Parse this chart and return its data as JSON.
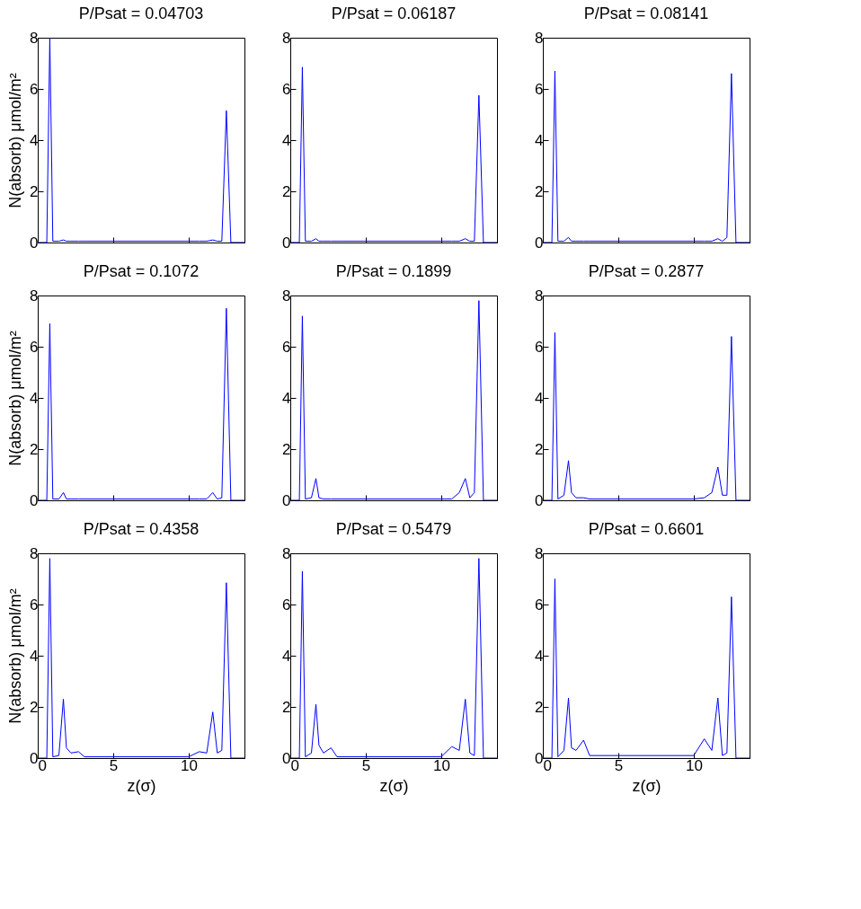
{
  "chart_data": [
    {
      "type": "line",
      "title": "P/Psat = 0.04703",
      "ylabel": "N(absorb) μmol/m²",
      "xlim": [
        0,
        13.7
      ],
      "xticks": [
        0,
        5,
        10
      ],
      "ylim": [
        0,
        8
      ],
      "yticks": [
        0,
        2,
        4,
        6,
        8
      ],
      "tick_labels": "y",
      "x": [
        0,
        0.6,
        0.8,
        1.0,
        1.4,
        1.7,
        1.9,
        2.2,
        2.7,
        3.1,
        10.0,
        10.7,
        11.2,
        11.6,
        11.9,
        12.2,
        12.5,
        12.8,
        13.7
      ],
      "series": [
        {
          "color": "#0000ff",
          "values": [
            0,
            0,
            8,
            0.05,
            0.05,
            0.1,
            0.05,
            0.05,
            0.05,
            0.05,
            0.05,
            0.05,
            0.05,
            0.1,
            0.05,
            0.05,
            5.15,
            0,
            0
          ]
        }
      ]
    },
    {
      "type": "line",
      "title": "P/Psat = 0.06187",
      "xlim": [
        0,
        13.7
      ],
      "xticks": [
        0,
        5,
        10
      ],
      "ylim": [
        0,
        8
      ],
      "yticks": [
        0,
        2,
        4,
        6,
        8
      ],
      "tick_labels": "y",
      "x": [
        0,
        0.6,
        0.8,
        1.0,
        1.4,
        1.7,
        1.9,
        2.2,
        2.7,
        3.1,
        10.0,
        10.7,
        11.2,
        11.6,
        11.9,
        12.2,
        12.5,
        12.8,
        13.7
      ],
      "series": [
        {
          "color": "#0000ff",
          "values": [
            0,
            0,
            6.85,
            0.05,
            0.05,
            0.15,
            0.05,
            0.05,
            0.05,
            0.05,
            0.05,
            0.05,
            0.05,
            0.15,
            0.05,
            0.05,
            5.75,
            0,
            0
          ]
        }
      ]
    },
    {
      "type": "line",
      "title": "P/Psat = 0.08141",
      "xlim": [
        0,
        13.7
      ],
      "xticks": [
        0,
        5,
        10
      ],
      "ylim": [
        0,
        8
      ],
      "yticks": [
        0,
        2,
        4,
        6,
        8
      ],
      "tick_labels": "y",
      "x": [
        0,
        0.6,
        0.8,
        1.0,
        1.4,
        1.7,
        1.9,
        2.2,
        2.7,
        3.1,
        10.0,
        10.7,
        11.2,
        11.6,
        11.9,
        12.2,
        12.5,
        12.8,
        13.7
      ],
      "series": [
        {
          "color": "#0000ff",
          "values": [
            0,
            0,
            6.7,
            0.05,
            0.05,
            0.2,
            0.05,
            0.05,
            0.05,
            0.05,
            0.05,
            0.05,
            0.05,
            0.15,
            0.05,
            0.2,
            6.6,
            0,
            0
          ]
        }
      ]
    },
    {
      "type": "line",
      "title": "P/Psat = 0.1072",
      "ylabel": "N(absorb) μmol/m²",
      "xlim": [
        0,
        13.7
      ],
      "xticks": [
        0,
        5,
        10
      ],
      "ylim": [
        0,
        8
      ],
      "yticks": [
        0,
        2,
        4,
        6,
        8
      ],
      "tick_labels": "y",
      "x": [
        0,
        0.6,
        0.8,
        1.0,
        1.4,
        1.7,
        1.9,
        2.2,
        2.7,
        3.1,
        10.0,
        10.7,
        11.2,
        11.6,
        11.9,
        12.2,
        12.5,
        12.8,
        13.7
      ],
      "series": [
        {
          "color": "#0000ff",
          "values": [
            0,
            0,
            6.9,
            0.05,
            0.05,
            0.3,
            0.05,
            0.05,
            0.05,
            0.05,
            0.05,
            0.05,
            0.05,
            0.3,
            0.05,
            0.1,
            7.5,
            0,
            0
          ]
        }
      ]
    },
    {
      "type": "line",
      "title": "P/Psat = 0.1899",
      "xlim": [
        0,
        13.7
      ],
      "xticks": [
        0,
        5,
        10
      ],
      "ylim": [
        0,
        8
      ],
      "yticks": [
        0,
        2,
        4,
        6,
        8
      ],
      "tick_labels": "y",
      "x": [
        0,
        0.6,
        0.8,
        1.0,
        1.4,
        1.7,
        1.9,
        2.2,
        2.7,
        3.1,
        10.0,
        10.7,
        11.2,
        11.6,
        11.9,
        12.2,
        12.5,
        12.8,
        13.7
      ],
      "series": [
        {
          "color": "#0000ff",
          "values": [
            0,
            0,
            7.2,
            0.05,
            0.1,
            0.85,
            0.1,
            0.05,
            0.05,
            0.05,
            0.05,
            0.05,
            0.3,
            0.85,
            0.1,
            0.3,
            7.8,
            0,
            0
          ]
        }
      ]
    },
    {
      "type": "line",
      "title": "P/Psat = 0.2877",
      "xlim": [
        0,
        13.7
      ],
      "xticks": [
        0,
        5,
        10
      ],
      "ylim": [
        0,
        8
      ],
      "yticks": [
        0,
        2,
        4,
        6,
        8
      ],
      "tick_labels": "y",
      "x": [
        0,
        0.6,
        0.8,
        1.0,
        1.4,
        1.7,
        1.9,
        2.2,
        2.7,
        3.1,
        10.0,
        10.7,
        11.2,
        11.6,
        11.9,
        12.2,
        12.5,
        12.8,
        13.7
      ],
      "series": [
        {
          "color": "#0000ff",
          "values": [
            0,
            0,
            6.55,
            0.05,
            0.2,
            1.55,
            0.3,
            0.1,
            0.1,
            0.05,
            0.05,
            0.1,
            0.3,
            1.3,
            0.2,
            0.2,
            6.4,
            0,
            0
          ]
        }
      ]
    },
    {
      "type": "line",
      "title": "P/Psat = 0.4358",
      "xlabel": "z(σ)",
      "ylabel": "N(absorb) μmol/m²",
      "xlim": [
        0,
        13.7
      ],
      "xticks": [
        0,
        5,
        10
      ],
      "ylim": [
        0,
        8
      ],
      "yticks": [
        0,
        2,
        4,
        6,
        8
      ],
      "x": [
        0,
        0.6,
        0.8,
        1.0,
        1.4,
        1.7,
        1.9,
        2.2,
        2.7,
        3.1,
        10.0,
        10.7,
        11.2,
        11.6,
        11.9,
        12.2,
        12.5,
        12.8,
        13.7
      ],
      "series": [
        {
          "color": "#0000ff",
          "values": [
            0,
            0,
            7.8,
            0.05,
            0.1,
            2.3,
            0.4,
            0.2,
            0.25,
            0.05,
            0.05,
            0.25,
            0.2,
            1.8,
            0.2,
            0.3,
            6.85,
            0,
            0
          ]
        }
      ]
    },
    {
      "type": "line",
      "title": "P/Psat = 0.5479",
      "xlabel": "z(σ)",
      "xlim": [
        0,
        13.7
      ],
      "xticks": [
        0,
        5,
        10
      ],
      "ylim": [
        0,
        8
      ],
      "yticks": [
        0,
        2,
        4,
        6,
        8
      ],
      "x": [
        0,
        0.6,
        0.8,
        1.0,
        1.4,
        1.7,
        1.9,
        2.2,
        2.7,
        3.1,
        10.0,
        10.7,
        11.2,
        11.6,
        11.9,
        12.2,
        12.5,
        12.8,
        13.7
      ],
      "series": [
        {
          "color": "#0000ff",
          "values": [
            0,
            0,
            7.3,
            0.05,
            0.2,
            2.1,
            0.5,
            0.2,
            0.4,
            0.05,
            0.05,
            0.45,
            0.3,
            2.3,
            0.2,
            0.1,
            7.8,
            0,
            0
          ]
        }
      ]
    },
    {
      "type": "line",
      "title": "P/Psat = 0.6601",
      "xlabel": "z(σ)",
      "xlim": [
        0,
        13.7
      ],
      "xticks": [
        0,
        5,
        10
      ],
      "ylim": [
        0,
        8
      ],
      "yticks": [
        0,
        2,
        4,
        6,
        8
      ],
      "x": [
        0,
        0.6,
        0.8,
        1.0,
        1.4,
        1.7,
        1.9,
        2.2,
        2.7,
        3.1,
        10.0,
        10.7,
        11.2,
        11.6,
        11.9,
        12.2,
        12.5,
        12.8,
        13.7
      ],
      "series": [
        {
          "color": "#0000ff",
          "values": [
            0,
            0,
            7.0,
            0.05,
            0.3,
            2.35,
            0.4,
            0.3,
            0.7,
            0.1,
            0.1,
            0.75,
            0.3,
            2.35,
            0.1,
            0.2,
            6.3,
            0,
            0
          ]
        }
      ]
    }
  ]
}
